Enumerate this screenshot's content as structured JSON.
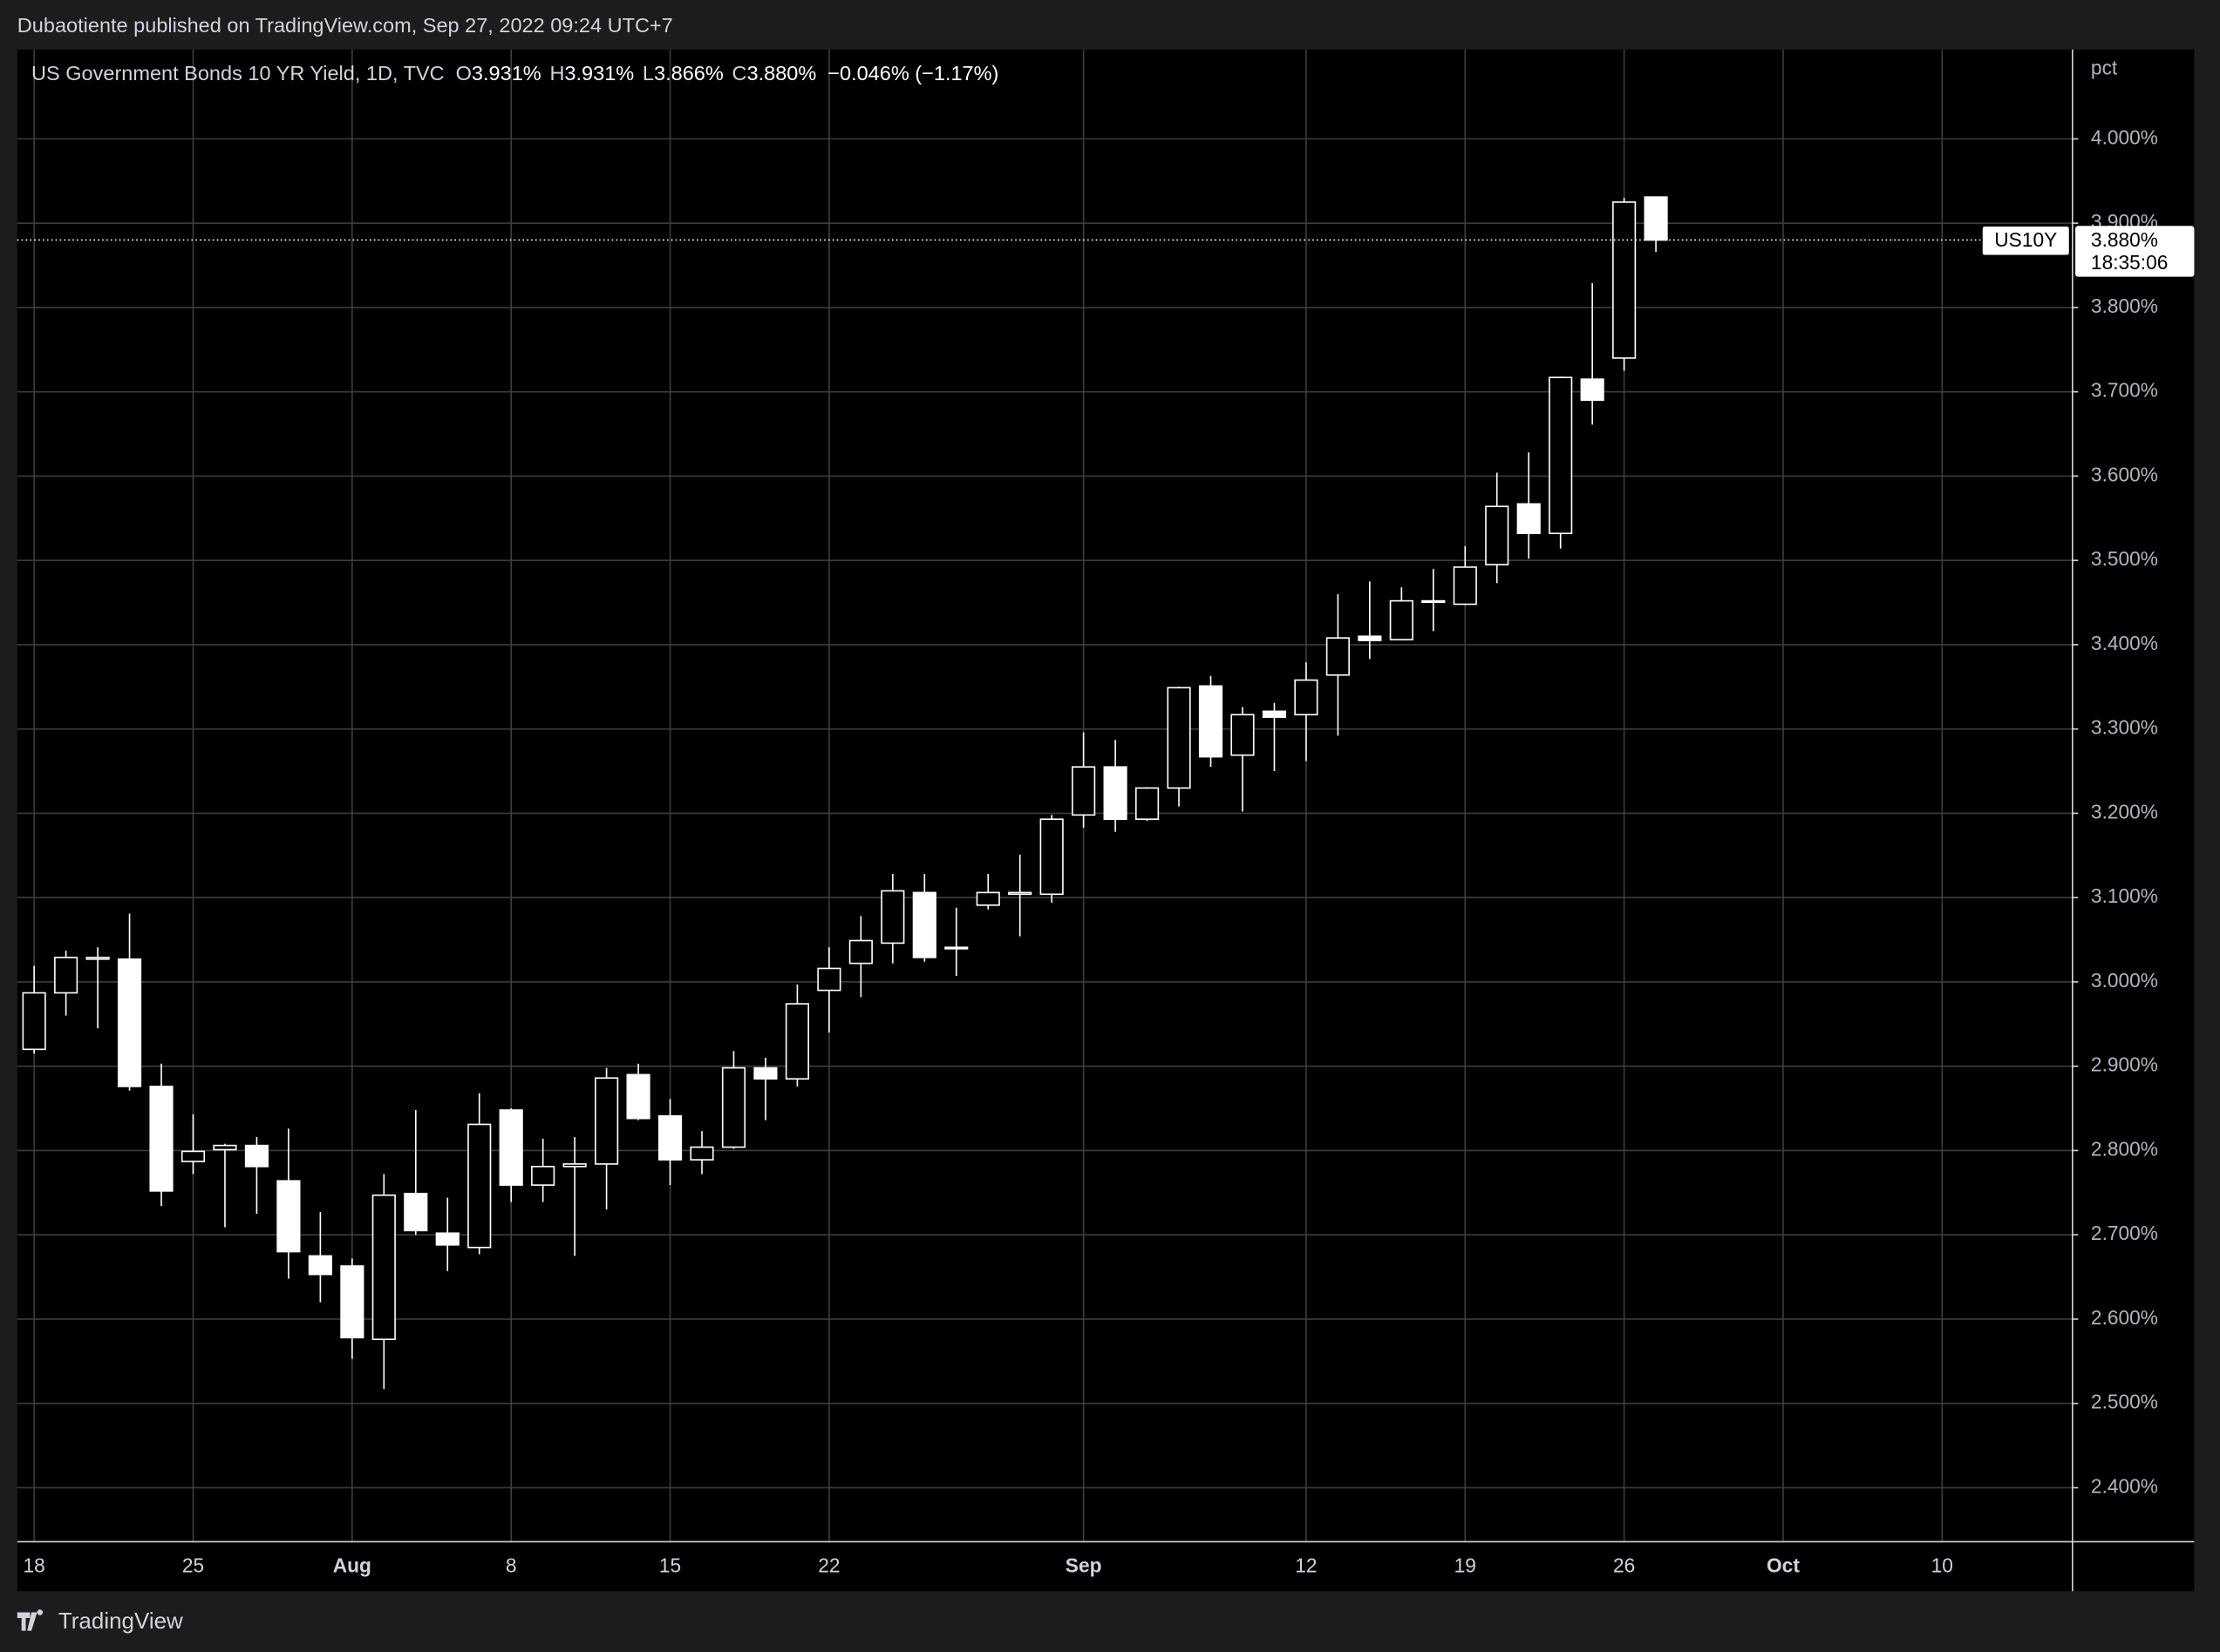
{
  "header": {
    "published": "Dubaotiente published on TradingView.com, Sep 27, 2022 09:24 UTC+7"
  },
  "footer": {
    "brand": "TradingView"
  },
  "chart_data": {
    "type": "candlestick",
    "title": "US Government Bonds 10 YR Yield, 1D, TVC",
    "ohlc_legend": [
      {
        "label": "O",
        "value": "3.931%"
      },
      {
        "label": "H",
        "value": "3.931%"
      },
      {
        "label": "L",
        "value": "3.866%"
      },
      {
        "label": "C",
        "value": "3.880%"
      }
    ],
    "change": "−0.046% (−1.17%)",
    "y_label": "pct",
    "x": [
      0,
      1,
      2,
      3,
      4,
      5,
      6,
      7,
      8,
      9,
      10,
      11,
      12,
      13,
      14,
      15,
      16,
      17,
      18,
      19,
      20,
      21,
      22,
      23,
      24,
      25,
      26,
      27,
      28,
      29,
      30,
      31,
      32,
      33,
      34,
      35,
      36,
      37,
      38,
      39,
      40,
      41,
      42,
      43,
      44,
      45,
      46,
      47,
      48,
      49,
      50,
      51
    ],
    "open": [
      2.92,
      2.987,
      3.027,
      3.027,
      2.876,
      2.787,
      2.801,
      2.806,
      2.764,
      2.675,
      2.663,
      2.576,
      2.749,
      2.702,
      2.685,
      2.848,
      2.759,
      2.781,
      2.784,
      2.89,
      2.841,
      2.789,
      2.804,
      2.898,
      2.885,
      2.99,
      3.022,
      3.046,
      3.106,
      3.04,
      3.091,
      3.104,
      3.104,
      3.198,
      3.255,
      3.193,
      3.23,
      3.351,
      3.269,
      3.321,
      3.317,
      3.364,
      3.41,
      3.406,
      3.451,
      3.448,
      3.495,
      3.567,
      3.532,
      3.715,
      3.74,
      3.931
    ],
    "high": [
      3.019,
      3.037,
      3.041,
      3.081,
      2.903,
      2.843,
      2.808,
      2.816,
      2.826,
      2.727,
      2.672,
      2.772,
      2.848,
      2.744,
      2.868,
      2.85,
      2.814,
      2.816,
      2.898,
      2.903,
      2.861,
      2.823,
      2.918,
      2.91,
      2.997,
      3.041,
      3.078,
      3.128,
      3.128,
      3.088,
      3.128,
      3.151,
      3.198,
      3.296,
      3.287,
      3.231,
      3.35,
      3.363,
      3.326,
      3.331,
      3.379,
      3.46,
      3.475,
      3.468,
      3.49,
      3.517,
      3.604,
      3.628,
      3.718,
      3.829,
      3.93,
      3.931
    ],
    "low": [
      2.915,
      2.96,
      2.945,
      2.871,
      2.734,
      2.772,
      2.709,
      2.725,
      2.648,
      2.62,
      2.553,
      2.517,
      2.7,
      2.657,
      2.677,
      2.739,
      2.739,
      2.675,
      2.73,
      2.836,
      2.759,
      2.772,
      2.802,
      2.836,
      2.876,
      2.94,
      2.982,
      3.022,
      3.024,
      3.007,
      3.086,
      3.054,
      3.094,
      3.183,
      3.178,
      3.191,
      3.208,
      3.255,
      3.202,
      3.25,
      3.262,
      3.292,
      3.383,
      3.405,
      3.416,
      3.447,
      3.473,
      3.502,
      3.514,
      3.661,
      3.725,
      3.866
    ],
    "close": [
      2.987,
      3.029,
      3.029,
      2.876,
      2.752,
      2.799,
      2.806,
      2.781,
      2.68,
      2.653,
      2.578,
      2.747,
      2.705,
      2.688,
      2.831,
      2.759,
      2.781,
      2.784,
      2.886,
      2.838,
      2.789,
      2.804,
      2.898,
      2.885,
      2.974,
      3.016,
      3.049,
      3.108,
      3.029,
      3.041,
      3.106,
      3.106,
      3.193,
      3.255,
      3.193,
      3.23,
      3.349,
      3.267,
      3.317,
      3.314,
      3.358,
      3.408,
      3.405,
      3.452,
      3.452,
      3.492,
      3.564,
      3.532,
      3.717,
      3.69,
      3.925,
      3.88
    ],
    "up_color": "#000000",
    "down_color": "#ffffff",
    "outline_color": "#ffffff",
    "xlim": [
      -0.53,
      64.1
    ],
    "xticks": [
      {
        "value": 0,
        "label": "18"
      },
      {
        "value": 5,
        "label": "25"
      },
      {
        "value": 10,
        "label": "Aug"
      },
      {
        "value": 15,
        "label": "8"
      },
      {
        "value": 20,
        "label": "15"
      },
      {
        "value": 25,
        "label": "22"
      },
      {
        "value": 33,
        "label": "Sep"
      },
      {
        "value": 40,
        "label": "12"
      },
      {
        "value": 45,
        "label": "19"
      },
      {
        "value": 50,
        "label": "26"
      },
      {
        "value": 55,
        "label": "Oct"
      },
      {
        "value": 60,
        "label": "10"
      }
    ],
    "ylim": [
      2.336,
      4.106
    ],
    "yticks": [
      {
        "value": 2.4,
        "label": "2.400%"
      },
      {
        "value": 2.5,
        "label": "2.500%"
      },
      {
        "value": 2.6,
        "label": "2.600%"
      },
      {
        "value": 2.7,
        "label": "2.700%"
      },
      {
        "value": 2.8,
        "label": "2.800%"
      },
      {
        "value": 2.9,
        "label": "2.900%"
      },
      {
        "value": 3.0,
        "label": "3.000%"
      },
      {
        "value": 3.1,
        "label": "3.100%"
      },
      {
        "value": 3.2,
        "label": "3.200%"
      },
      {
        "value": 3.3,
        "label": "3.300%"
      },
      {
        "value": 3.4,
        "label": "3.400%"
      },
      {
        "value": 3.5,
        "label": "3.500%"
      },
      {
        "value": 3.6,
        "label": "3.600%"
      },
      {
        "value": 3.7,
        "label": "3.700%"
      },
      {
        "value": 3.8,
        "label": "3.800%"
      },
      {
        "value": 3.9,
        "label": "3.900%"
      },
      {
        "value": 4.0,
        "label": "4.000%"
      }
    ],
    "grid": true,
    "last_price": {
      "symbol": "US10Y",
      "value": 3.88,
      "label": "3.880%",
      "countdown": "18:35:06"
    }
  }
}
